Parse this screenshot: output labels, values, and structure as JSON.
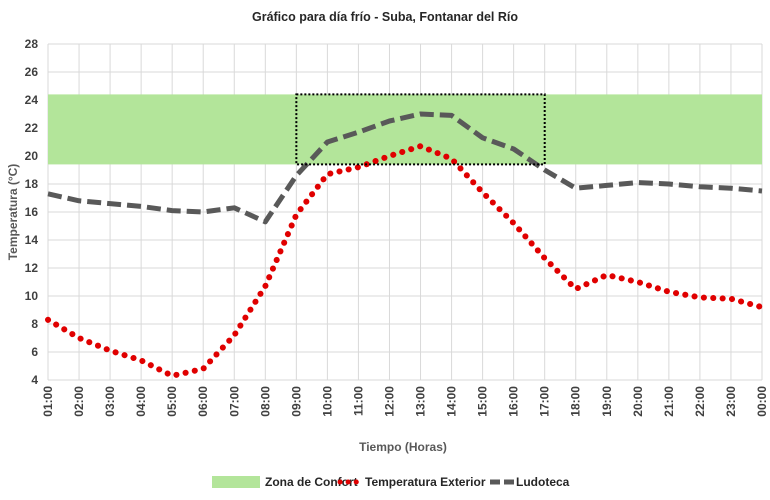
{
  "chart_data": {
    "type": "line",
    "title": "Gráfico para día frío - Suba, Fontanar del Río",
    "xlabel": "Tiempo (Horas)",
    "ylabel": "Temperatura (°C)",
    "ylim": [
      4,
      28
    ],
    "yticks": [
      4,
      6,
      8,
      10,
      12,
      14,
      16,
      18,
      20,
      22,
      24,
      26,
      28
    ],
    "grid": true,
    "legend_position": "bottom",
    "categories": [
      "01:00",
      "02:00",
      "03:00",
      "04:00",
      "05:00",
      "06:00",
      "07:00",
      "08:00",
      "09:00",
      "10:00",
      "11:00",
      "12:00",
      "13:00",
      "14:00",
      "15:00",
      "16:00",
      "17:00",
      "18:00",
      "19:00",
      "20:00",
      "21:00",
      "22:00",
      "23:00",
      "00:00"
    ],
    "comfort_zone": {
      "name": "Zona de Confort",
      "y_min": 19.4,
      "y_max": 24.4,
      "color": "#b3e59a"
    },
    "highlight_box": {
      "x_start": "09:00",
      "x_end": "17:00",
      "y_min": 19.4,
      "y_max": 24.4
    },
    "series": [
      {
        "name": "Temperatura Exterior",
        "color": "#e00000",
        "style": "dotted",
        "values": [
          8.3,
          7.0,
          6.1,
          5.4,
          4.3,
          4.8,
          7.2,
          10.7,
          15.8,
          18.7,
          19.2,
          20.0,
          20.7,
          19.8,
          17.4,
          15.2,
          12.7,
          10.5,
          11.5,
          11.0,
          10.3,
          9.9,
          9.8,
          9.2
        ]
      },
      {
        "name": "Ludoteca",
        "color": "#595959",
        "style": "dashed",
        "values": [
          17.3,
          16.8,
          16.6,
          16.4,
          16.1,
          16.0,
          16.3,
          15.3,
          18.6,
          21.0,
          21.7,
          22.5,
          23.0,
          22.9,
          21.3,
          20.5,
          19.0,
          17.7,
          17.9,
          18.1,
          18.0,
          17.8,
          17.7,
          17.5
        ]
      }
    ]
  }
}
